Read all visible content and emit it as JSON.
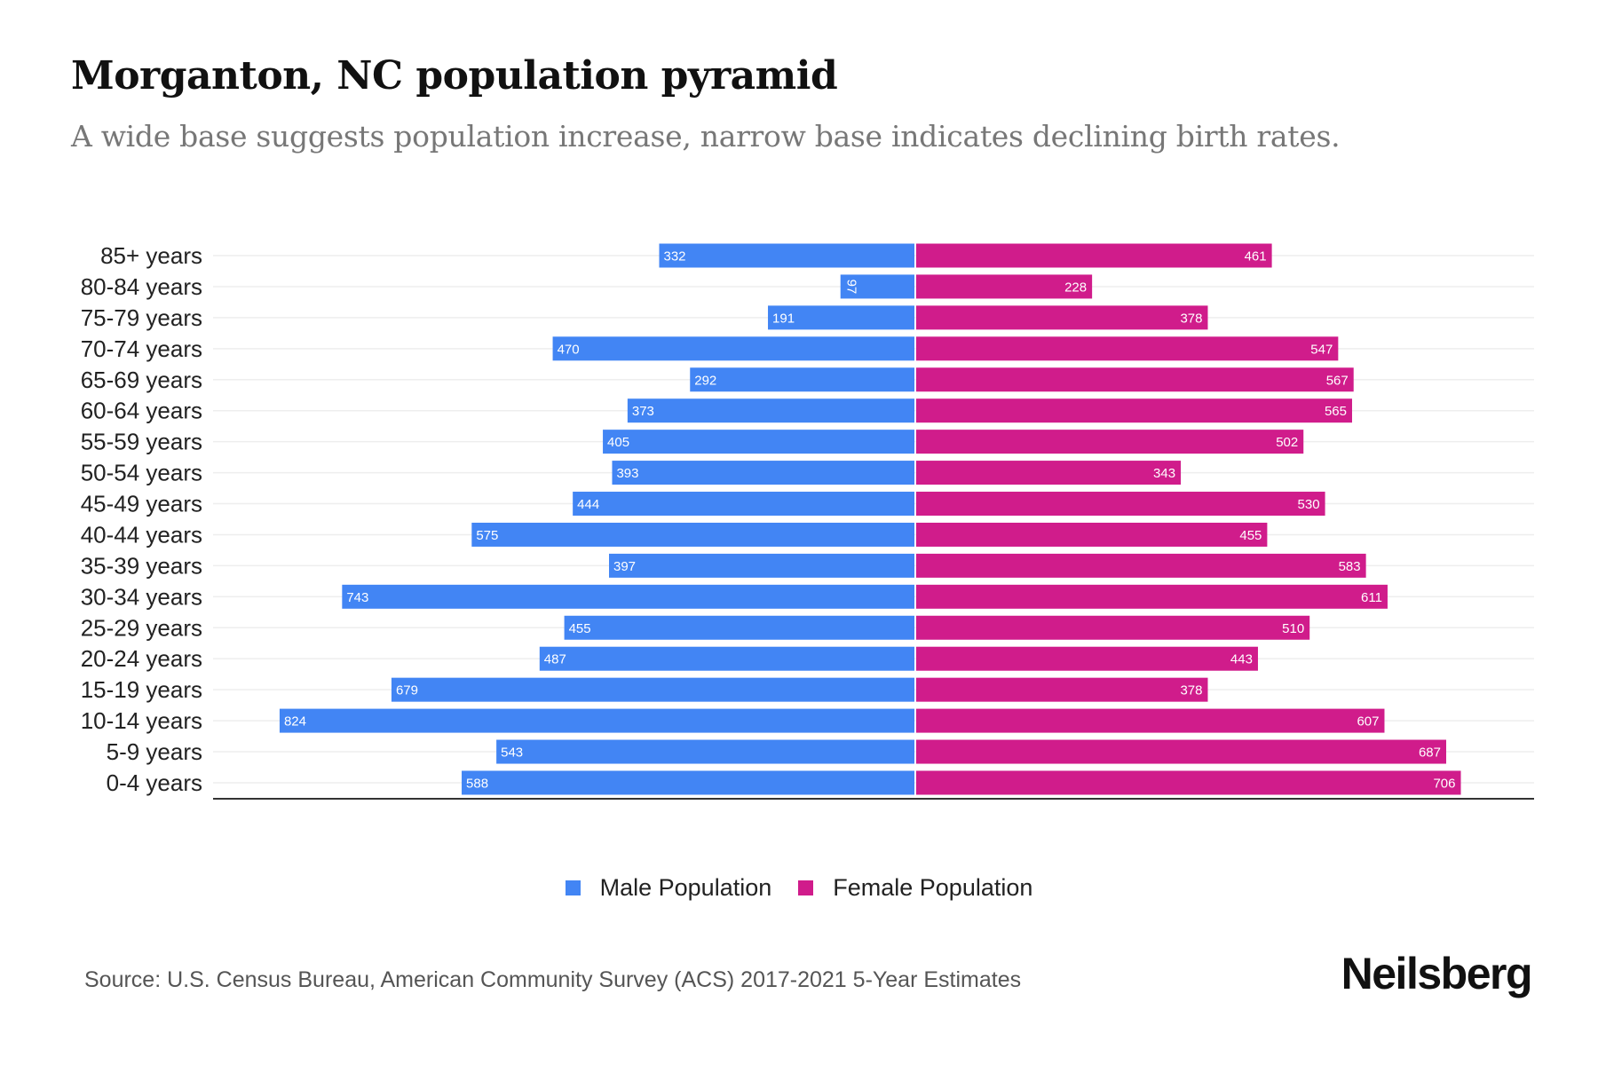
{
  "header": {
    "title": "Morganton, NC population pyramid",
    "subtitle": "A wide base suggests population increase, narrow base indicates declining birth rates."
  },
  "colors": {
    "male": "#4285F4",
    "female": "#D01C8B",
    "grid": "#eeeeee",
    "axis": "#333333"
  },
  "chart_data": {
    "type": "bar",
    "orientation": "horizontal-pyramid",
    "title": "Morganton, NC population pyramid",
    "subtitle": "A wide base suggests population increase, narrow base indicates declining birth rates.",
    "xlabel": "",
    "ylabel": "",
    "grid": true,
    "legend_position": "bottom",
    "categories": [
      "85+ years",
      "80-84 years",
      "75-79 years",
      "70-74 years",
      "65-69 years",
      "60-64 years",
      "55-59 years",
      "50-54 years",
      "45-49 years",
      "40-44 years",
      "35-39 years",
      "30-34 years",
      "25-29 years",
      "20-24 years",
      "15-19 years",
      "10-14 years",
      "5-9 years",
      "0-4 years"
    ],
    "series": [
      {
        "name": "Male Population",
        "side": "left",
        "values": [
          332,
          97,
          191,
          470,
          292,
          373,
          405,
          393,
          444,
          575,
          397,
          743,
          455,
          487,
          679,
          824,
          543,
          588
        ]
      },
      {
        "name": "Female Population",
        "side": "right",
        "values": [
          461,
          228,
          378,
          547,
          567,
          565,
          502,
          343,
          530,
          455,
          583,
          611,
          510,
          443,
          378,
          607,
          687,
          706
        ]
      }
    ],
    "xlim": [
      -910,
      790
    ]
  },
  "legend": {
    "items": [
      {
        "label": "Male Population"
      },
      {
        "label": "Female Population"
      }
    ]
  },
  "footer": {
    "source": "Source: U.S. Census Bureau, American Community Survey (ACS) 2017-2021 5-Year Estimates",
    "brand": "Neilsberg"
  }
}
